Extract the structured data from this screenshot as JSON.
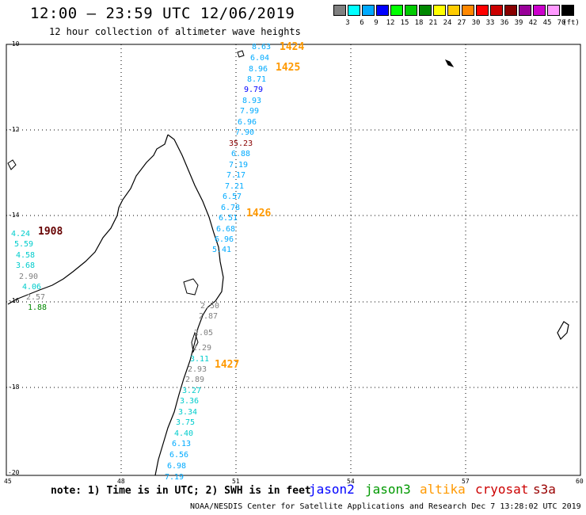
{
  "header": {
    "title": "12:00 — 23:59 UTC 12/06/2019",
    "subtitle": "12 hour collection of altimeter wave heights"
  },
  "legend": {
    "colors": [
      "#808080",
      "#00ffff",
      "#00aaff",
      "#0000ff",
      "#00ff00",
      "#00cc00",
      "#008800",
      "#ffff00",
      "#ffcc00",
      "#ff8800",
      "#ff0000",
      "#cc0000",
      "#880000",
      "#990099",
      "#cc00cc",
      "#ff99ff",
      "#000000"
    ],
    "labels": [
      "3",
      "6",
      "9",
      "12",
      "15",
      "18",
      "21",
      "24",
      "27",
      "30",
      "33",
      "36",
      "39",
      "42",
      "45",
      "70",
      "(ft)"
    ]
  },
  "axes": {
    "lat_labels": [
      "-10",
      "-12",
      "-14",
      "-16",
      "-18",
      "-20"
    ],
    "lon_labels": [
      "45",
      "48",
      "51",
      "54",
      "57",
      "60"
    ]
  },
  "passes": [
    {
      "label": "1424",
      "color": "#ff9900"
    },
    {
      "label": "1425",
      "color": "#ff9900"
    },
    {
      "label": "1426",
      "color": "#ff9900"
    },
    {
      "label": "1427",
      "color": "#ff9900"
    },
    {
      "label": "1908",
      "color": "#660000"
    }
  ],
  "wave_labels": [
    {
      "v": "8.63",
      "c": "#00aaff"
    },
    {
      "v": "6.04",
      "c": "#00aaff"
    },
    {
      "v": "8.96",
      "c": "#00aaff"
    },
    {
      "v": "8.71",
      "c": "#00aaff"
    },
    {
      "v": "9.79",
      "c": "#0000ff"
    },
    {
      "v": "8.93",
      "c": "#00aaff"
    },
    {
      "v": "7.99",
      "c": "#00aaff"
    },
    {
      "v": "6.96",
      "c": "#00aaff"
    },
    {
      "v": "7.90",
      "c": "#00aaff"
    },
    {
      "v": "35.23",
      "c": "#880000"
    },
    {
      "v": "6.88",
      "c": "#00aaff"
    },
    {
      "v": "7.19",
      "c": "#00aaff"
    },
    {
      "v": "7.17",
      "c": "#00aaff"
    },
    {
      "v": "7.21",
      "c": "#00aaff"
    },
    {
      "v": "6.57",
      "c": "#00aaff"
    },
    {
      "v": "6.78",
      "c": "#00aaff"
    },
    {
      "v": "6.51",
      "c": "#00aaff"
    },
    {
      "v": "6.68",
      "c": "#00aaff"
    },
    {
      "v": "6.96",
      "c": "#00aaff"
    },
    {
      "v": "5.41",
      "c": "#00aaff"
    },
    {
      "v": "4.24",
      "c": "#00cccc"
    },
    {
      "v": "5.59",
      "c": "#00cccc"
    },
    {
      "v": "4.58",
      "c": "#00cccc"
    },
    {
      "v": "3.68",
      "c": "#00cccc"
    },
    {
      "v": "2.90",
      "c": "#808080"
    },
    {
      "v": "4.06",
      "c": "#00cccc"
    },
    {
      "v": "2.57",
      "c": "#808080"
    },
    {
      "v": "1.88",
      "c": "#008800"
    },
    {
      "v": "2.50",
      "c": "#808080"
    },
    {
      "v": "2.87",
      "c": "#808080"
    },
    {
      "v": "2.05",
      "c": "#808080"
    },
    {
      "v": "2.29",
      "c": "#808080"
    },
    {
      "v": "3.11",
      "c": "#00cccc"
    },
    {
      "v": "2.93",
      "c": "#808080"
    },
    {
      "v": "2.89",
      "c": "#808080"
    },
    {
      "v": "3.27",
      "c": "#00cccc"
    },
    {
      "v": "3.36",
      "c": "#00cccc"
    },
    {
      "v": "3.34",
      "c": "#00cccc"
    },
    {
      "v": "3.75",
      "c": "#00cccc"
    },
    {
      "v": "4.40",
      "c": "#00cccc"
    },
    {
      "v": "6.13",
      "c": "#00aaff"
    },
    {
      "v": "6.56",
      "c": "#00aaff"
    },
    {
      "v": "6.98",
      "c": "#00aaff"
    },
    {
      "v": "7.19",
      "c": "#00aaff"
    }
  ],
  "footer": {
    "note": "note: 1) Time is in UTC; 2) SWH is in feet",
    "satellites": [
      {
        "name": "jason2",
        "color": "#0000ff"
      },
      {
        "name": "jason3",
        "color": "#009900"
      },
      {
        "name": "altika",
        "color": "#ff9900"
      },
      {
        "name": "cryosat",
        "color": "#cc0000"
      },
      {
        "name": "s3a",
        "color": "#990000"
      }
    ],
    "credit": "NOAA/NESDIS Center for Satellite Applications and Research   Dec  7 13:28:02 UTC 2019"
  }
}
